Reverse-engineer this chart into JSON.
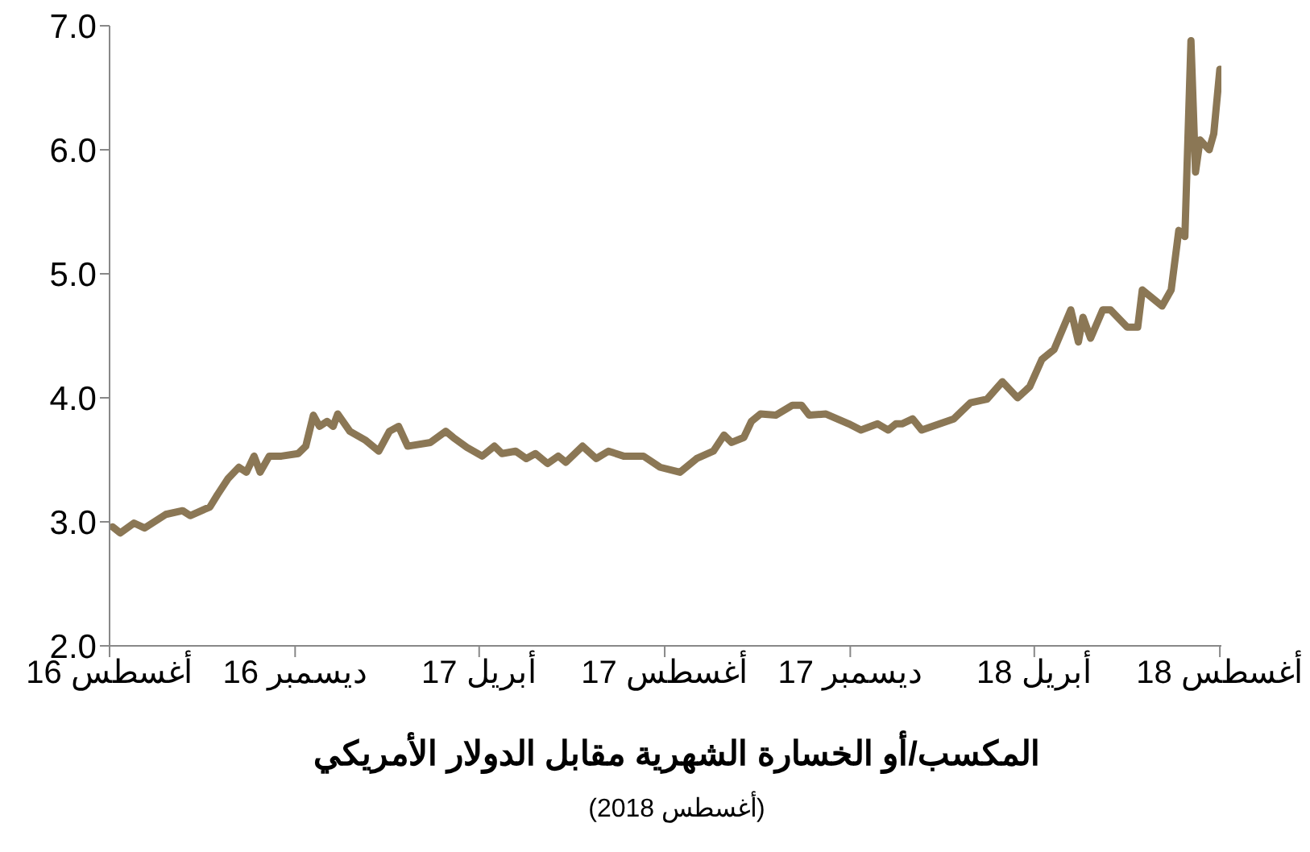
{
  "chart_data": {
    "type": "line",
    "title": "المكسب/أو الخسارة الشهرية مقابل الدولار الأمريكي",
    "subtitle": "(أغسطس 2018)",
    "x": [
      "2016-08-03",
      "2016-08-08",
      "2016-08-17",
      "2016-08-24",
      "2016-09-07",
      "2016-09-18",
      "2016-09-23",
      "2016-10-06",
      "2016-10-11",
      "2016-10-18",
      "2016-10-25",
      "2016-10-30",
      "2016-11-04",
      "2016-11-08",
      "2016-11-14",
      "2016-11-22",
      "2016-12-03",
      "2016-12-08",
      "2016-12-13",
      "2016-12-17",
      "2016-12-22",
      "2016-12-26",
      "2016-12-29",
      "2017-01-06",
      "2017-01-16",
      "2017-01-25",
      "2017-02-01",
      "2017-02-07",
      "2017-02-13",
      "2017-02-28",
      "2017-03-10",
      "2017-03-15",
      "2017-03-24",
      "2017-04-03",
      "2017-04-11",
      "2017-04-16",
      "2017-04-25",
      "2017-05-02",
      "2017-05-08",
      "2017-05-16",
      "2017-05-23",
      "2017-05-28",
      "2017-06-08",
      "2017-06-17",
      "2017-06-25",
      "2017-07-05",
      "2017-07-18",
      "2017-07-29",
      "2017-08-11",
      "2017-08-22",
      "2017-09-02",
      "2017-09-09",
      "2017-09-14",
      "2017-09-22",
      "2017-09-27",
      "2017-10-03",
      "2017-10-13",
      "2017-10-24",
      "2017-10-30",
      "2017-11-04",
      "2017-11-15",
      "2017-11-30",
      "2017-12-08",
      "2017-12-19",
      "2017-12-26",
      "2017-12-31",
      "2018-01-04",
      "2018-01-11",
      "2018-01-17",
      "2018-02-07",
      "2018-02-18",
      "2018-03-01",
      "2018-03-11",
      "2018-03-21",
      "2018-03-29",
      "2018-04-06",
      "2018-04-14",
      "2018-04-25",
      "2018-04-30",
      "2018-05-03",
      "2018-05-08",
      "2018-05-16",
      "2018-05-21",
      "2018-06-01",
      "2018-06-08",
      "2018-06-11",
      "2018-06-24",
      "2018-06-30",
      "2018-07-05",
      "2018-07-09",
      "2018-07-13",
      "2018-07-16",
      "2018-07-19",
      "2018-07-25",
      "2018-07-28",
      "2018-08-01",
      "2018-08-02"
    ],
    "series": [
      {
        "color": "#8b7755",
        "values": [
          2.96,
          2.91,
          2.99,
          2.95,
          3.06,
          3.09,
          3.05,
          3.12,
          3.22,
          3.35,
          3.44,
          3.4,
          3.53,
          3.4,
          3.53,
          3.53,
          3.55,
          3.61,
          3.86,
          3.77,
          3.81,
          3.77,
          3.87,
          3.73,
          3.66,
          3.57,
          3.73,
          3.77,
          3.61,
          3.64,
          3.73,
          3.68,
          3.6,
          3.53,
          3.61,
          3.55,
          3.57,
          3.51,
          3.55,
          3.47,
          3.53,
          3.48,
          3.61,
          3.51,
          3.57,
          3.53,
          3.53,
          3.44,
          3.4,
          3.51,
          3.57,
          3.7,
          3.64,
          3.68,
          3.81,
          3.87,
          3.86,
          3.94,
          3.94,
          3.86,
          3.87,
          3.79,
          3.74,
          3.79,
          3.74,
          3.79,
          3.79,
          3.83,
          3.74,
          3.83,
          3.96,
          3.99,
          4.13,
          4.0,
          4.09,
          4.31,
          4.39,
          4.71,
          4.45,
          4.65,
          4.48,
          4.71,
          4.71,
          4.57,
          4.57,
          4.87,
          4.74,
          4.87,
          5.35,
          5.3,
          6.88,
          5.82,
          6.08,
          6.0,
          6.13,
          6.65,
          6.52
        ]
      }
    ],
    "xlim": [
      "2016-08-01",
      "2018-08-02"
    ],
    "xticks": [
      {
        "value": "2016-08-01",
        "label": "أغسطس 16"
      },
      {
        "value": "2016-12-01",
        "label": "ديسمبر 16"
      },
      {
        "value": "2017-04-01",
        "label": "أبريل 17"
      },
      {
        "value": "2017-08-01",
        "label": "أغسطس 17"
      },
      {
        "value": "2017-12-01",
        "label": "ديسمبر 17"
      },
      {
        "value": "2018-04-01",
        "label": "أبريل 18"
      },
      {
        "value": "2018-08-01",
        "label": "أغسطس 18"
      }
    ],
    "ylim": [
      2,
      7
    ],
    "yticks": [
      {
        "value": 2,
        "label": "2.0"
      },
      {
        "value": 3,
        "label": "3.0"
      },
      {
        "value": 4,
        "label": "4.0"
      },
      {
        "value": 5,
        "label": "5.0"
      },
      {
        "value": 6,
        "label": "6.0"
      },
      {
        "value": 7,
        "label": "7.0"
      }
    ],
    "grid": false,
    "legend": false,
    "marker": "none",
    "line_style": "solid"
  }
}
